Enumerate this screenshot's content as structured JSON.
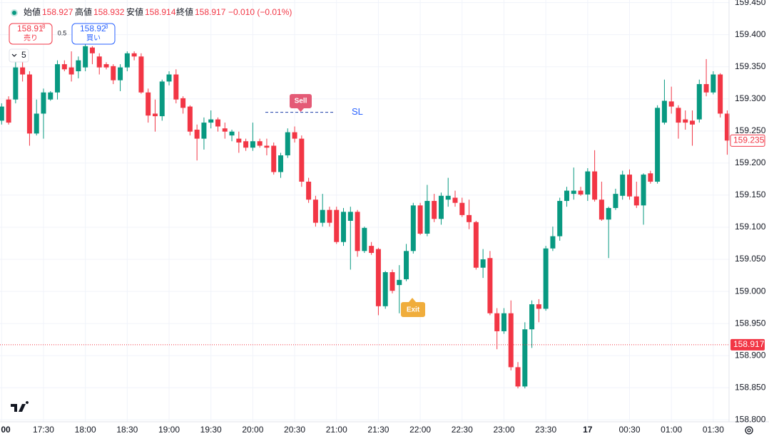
{
  "header": {
    "open_label": "始値",
    "open": 158.927,
    "high_label": "高値",
    "high": 158.932,
    "low_label": "安値",
    "low": 158.914,
    "close_label": "終値",
    "close": 158.917,
    "change": "−0.010 (−0.01%)"
  },
  "trade_panel": {
    "sell_price": "158.91",
    "sell_pip": "8",
    "sell_label": "売り",
    "spread": 0.5,
    "buy_price": "158.92",
    "buy_pip": "3",
    "buy_label": "買い"
  },
  "interval": 5,
  "chart_data": {
    "type": "candlestick",
    "categories": [
      "00",
      null,
      null,
      null,
      null,
      null,
      "17:30",
      null,
      null,
      null,
      null,
      null,
      "18:00",
      null,
      null,
      null,
      null,
      null,
      "18:30",
      null,
      null,
      null,
      null,
      null,
      "19:00",
      null,
      null,
      null,
      null,
      null,
      "19:30",
      null,
      null,
      null,
      null,
      null,
      "20:00",
      null,
      null,
      null,
      null,
      null,
      "20:30",
      null,
      null,
      null,
      null,
      null,
      "21:00",
      null,
      null,
      null,
      null,
      null,
      "21:30",
      null,
      null,
      null,
      null,
      null,
      "22:00",
      null,
      null,
      null,
      null,
      null,
      "22:30",
      null,
      null,
      null,
      null,
      null,
      "23:00",
      null,
      null,
      null,
      null,
      null,
      "23:30",
      null,
      null,
      null,
      null,
      null,
      "17",
      null,
      null,
      null,
      null,
      null,
      "00:30",
      null,
      null,
      null,
      null,
      null,
      "01:00",
      null,
      null,
      null,
      null,
      null,
      "01:30",
      null,
      null
    ],
    "open": [
      159.266,
      159.299,
      159.299,
      159.349,
      159.338,
      159.246,
      159.277,
      159.299,
      159.31,
      159.354,
      159.349,
      159.343,
      159.349,
      159.38,
      159.366,
      159.354,
      159.351,
      159.329,
      159.349,
      159.371,
      159.366,
      159.31,
      159.277,
      159.273,
      159.327,
      159.338,
      159.301,
      159.288,
      159.252,
      159.238,
      159.263,
      159.268,
      159.254,
      159.243,
      159.238,
      159.234,
      159.224,
      159.234,
      159.227,
      159.227,
      159.186,
      159.212,
      159.248,
      159.238,
      159.171,
      159.143,
      159.107,
      159.127,
      159.127,
      159.077,
      159.11,
      159.124,
      159.063,
      159.071,
      159.066,
      158.977,
      159.03,
      159.01,
      159.019,
      159.063,
      159.134,
      159.09,
      159.141,
      159.113,
      159.143,
      159.146,
      159.138,
      159.119,
      159.108,
      159.037,
      159.052,
      158.966,
      158.938,
      158.966,
      158.882,
      158.852,
      158.941,
      158.98,
      158.973,
      159.067,
      159.086,
      159.141,
      159.152,
      159.157,
      159.151,
      159.187,
      159.143,
      159.112,
      159.13,
      159.149,
      159.182,
      159.148,
      159.134,
      159.184,
      159.171,
      159.263,
      159.296,
      159.286,
      159.268,
      159.266,
      159.268,
      159.323,
      159.31,
      159.338,
      159.277
    ],
    "high": [
      159.293,
      159.304,
      159.36,
      159.357,
      159.343,
      159.299,
      159.316,
      159.312,
      159.36,
      159.36,
      159.374,
      159.366,
      159.393,
      159.382,
      159.371,
      159.357,
      159.354,
      159.354,
      159.374,
      159.374,
      159.371,
      159.316,
      159.299,
      159.33,
      159.343,
      159.346,
      159.304,
      159.29,
      159.26,
      159.271,
      159.282,
      159.271,
      159.263,
      159.252,
      159.249,
      159.238,
      159.263,
      159.238,
      159.238,
      159.232,
      159.216,
      159.254,
      159.257,
      159.243,
      159.177,
      159.149,
      159.152,
      159.132,
      159.132,
      159.13,
      159.132,
      159.127,
      159.101,
      159.077,
      159.068,
      159.032,
      159.034,
      159.041,
      159.074,
      159.138,
      159.138,
      159.166,
      159.152,
      159.154,
      159.177,
      159.157,
      159.146,
      159.143,
      159.11,
      159.066,
      159.063,
      158.974,
      158.974,
      158.986,
      158.89,
      158.952,
      158.986,
      158.988,
      159.071,
      159.101,
      159.146,
      159.163,
      159.193,
      159.163,
      159.192,
      159.22,
      159.171,
      159.132,
      159.16,
      159.188,
      159.19,
      159.171,
      159.184,
      159.188,
      159.29,
      159.33,
      159.319,
      159.29,
      159.282,
      159.282,
      159.33,
      159.362,
      159.343,
      159.34,
      159.282
    ],
    "low": [
      159.26,
      159.26,
      159.293,
      159.327,
      159.227,
      159.243,
      159.238,
      159.297,
      159.299,
      159.343,
      159.327,
      159.332,
      159.343,
      159.354,
      159.338,
      159.346,
      159.323,
      159.312,
      159.343,
      159.36,
      159.308,
      159.263,
      159.249,
      159.266,
      159.321,
      159.293,
      159.277,
      159.243,
      159.204,
      159.221,
      159.254,
      159.249,
      159.238,
      159.234,
      159.216,
      159.219,
      159.219,
      159.224,
      159.212,
      159.182,
      159.177,
      159.208,
      159.232,
      159.163,
      159.138,
      159.101,
      159.101,
      159.101,
      159.074,
      159.071,
      159.034,
      159.054,
      159.06,
      159.057,
      158.963,
      158.973,
      158.997,
      158.966,
      159.016,
      159.059,
      159.088,
      159.086,
      159.108,
      159.104,
      159.132,
      159.132,
      159.116,
      159.097,
      159.034,
      159.021,
      158.963,
      158.91,
      158.934,
      158.877,
      158.849,
      158.849,
      158.912,
      158.952,
      158.97,
      159.063,
      159.079,
      159.132,
      159.143,
      159.149,
      159.141,
      159.14,
      159.11,
      159.052,
      159.127,
      159.143,
      159.143,
      159.13,
      159.104,
      159.168,
      159.168,
      159.26,
      159.277,
      159.238,
      159.252,
      159.227,
      159.263,
      159.304,
      159.307,
      159.271,
      159.213
    ],
    "close": [
      159.288,
      159.263,
      159.349,
      159.338,
      159.246,
      159.277,
      159.31,
      159.31,
      159.354,
      159.346,
      159.338,
      159.36,
      159.382,
      159.371,
      159.349,
      159.349,
      159.329,
      159.349,
      159.371,
      159.366,
      159.31,
      159.274,
      159.273,
      159.327,
      159.338,
      159.299,
      159.286,
      159.249,
      159.238,
      159.263,
      159.268,
      159.257,
      159.249,
      159.249,
      159.232,
      159.224,
      159.234,
      159.227,
      159.224,
      159.186,
      159.212,
      159.248,
      159.238,
      159.171,
      159.143,
      159.107,
      159.127,
      159.107,
      159.077,
      159.124,
      159.124,
      159.063,
      159.099,
      159.06,
      158.977,
      159.03,
      159.001,
      159.018,
      159.063,
      159.134,
      159.09,
      159.141,
      159.113,
      159.149,
      159.149,
      159.138,
      159.119,
      159.108,
      159.037,
      159.05,
      158.966,
      158.938,
      158.966,
      158.882,
      158.852,
      158.941,
      158.98,
      158.973,
      159.067,
      159.086,
      159.141,
      159.157,
      159.157,
      159.151,
      159.187,
      159.143,
      159.112,
      159.13,
      159.152,
      159.182,
      159.148,
      159.134,
      159.182,
      159.171,
      159.286,
      159.297,
      159.288,
      159.263,
      159.263,
      159.26,
      159.323,
      159.31,
      159.338,
      159.277,
      159.235
    ],
    "up_color": "#089981",
    "down_color": "#f23645",
    "ylim": [
      158.797,
      159.454
    ],
    "yticks": [
      {
        "value": 159.45,
        "label": "159.450"
      },
      {
        "value": 159.4,
        "label": "159.400"
      },
      {
        "value": 159.35,
        "label": "159.350"
      },
      {
        "value": 159.3,
        "label": "159.300"
      },
      {
        "value": 159.25,
        "label": "159.250"
      },
      {
        "value": 159.2,
        "label": "159.200"
      },
      {
        "value": 159.15,
        "label": "159.150"
      },
      {
        "value": 159.1,
        "label": "159.100"
      },
      {
        "value": 159.05,
        "label": "159.050"
      },
      {
        "value": 159.0,
        "label": "159.000"
      },
      {
        "value": 158.95,
        "label": "158.950"
      },
      {
        "value": 158.9,
        "label": "158.900"
      },
      {
        "value": 158.85,
        "label": "158.850"
      },
      {
        "value": 158.8,
        "label": "158.800"
      }
    ],
    "grid": true,
    "last_price": 159.235,
    "marked_price": 158.917,
    "stop_loss_level": 159.279,
    "annotations": {
      "sell": "Sell",
      "exit": "Exit",
      "sl": "SL"
    }
  }
}
